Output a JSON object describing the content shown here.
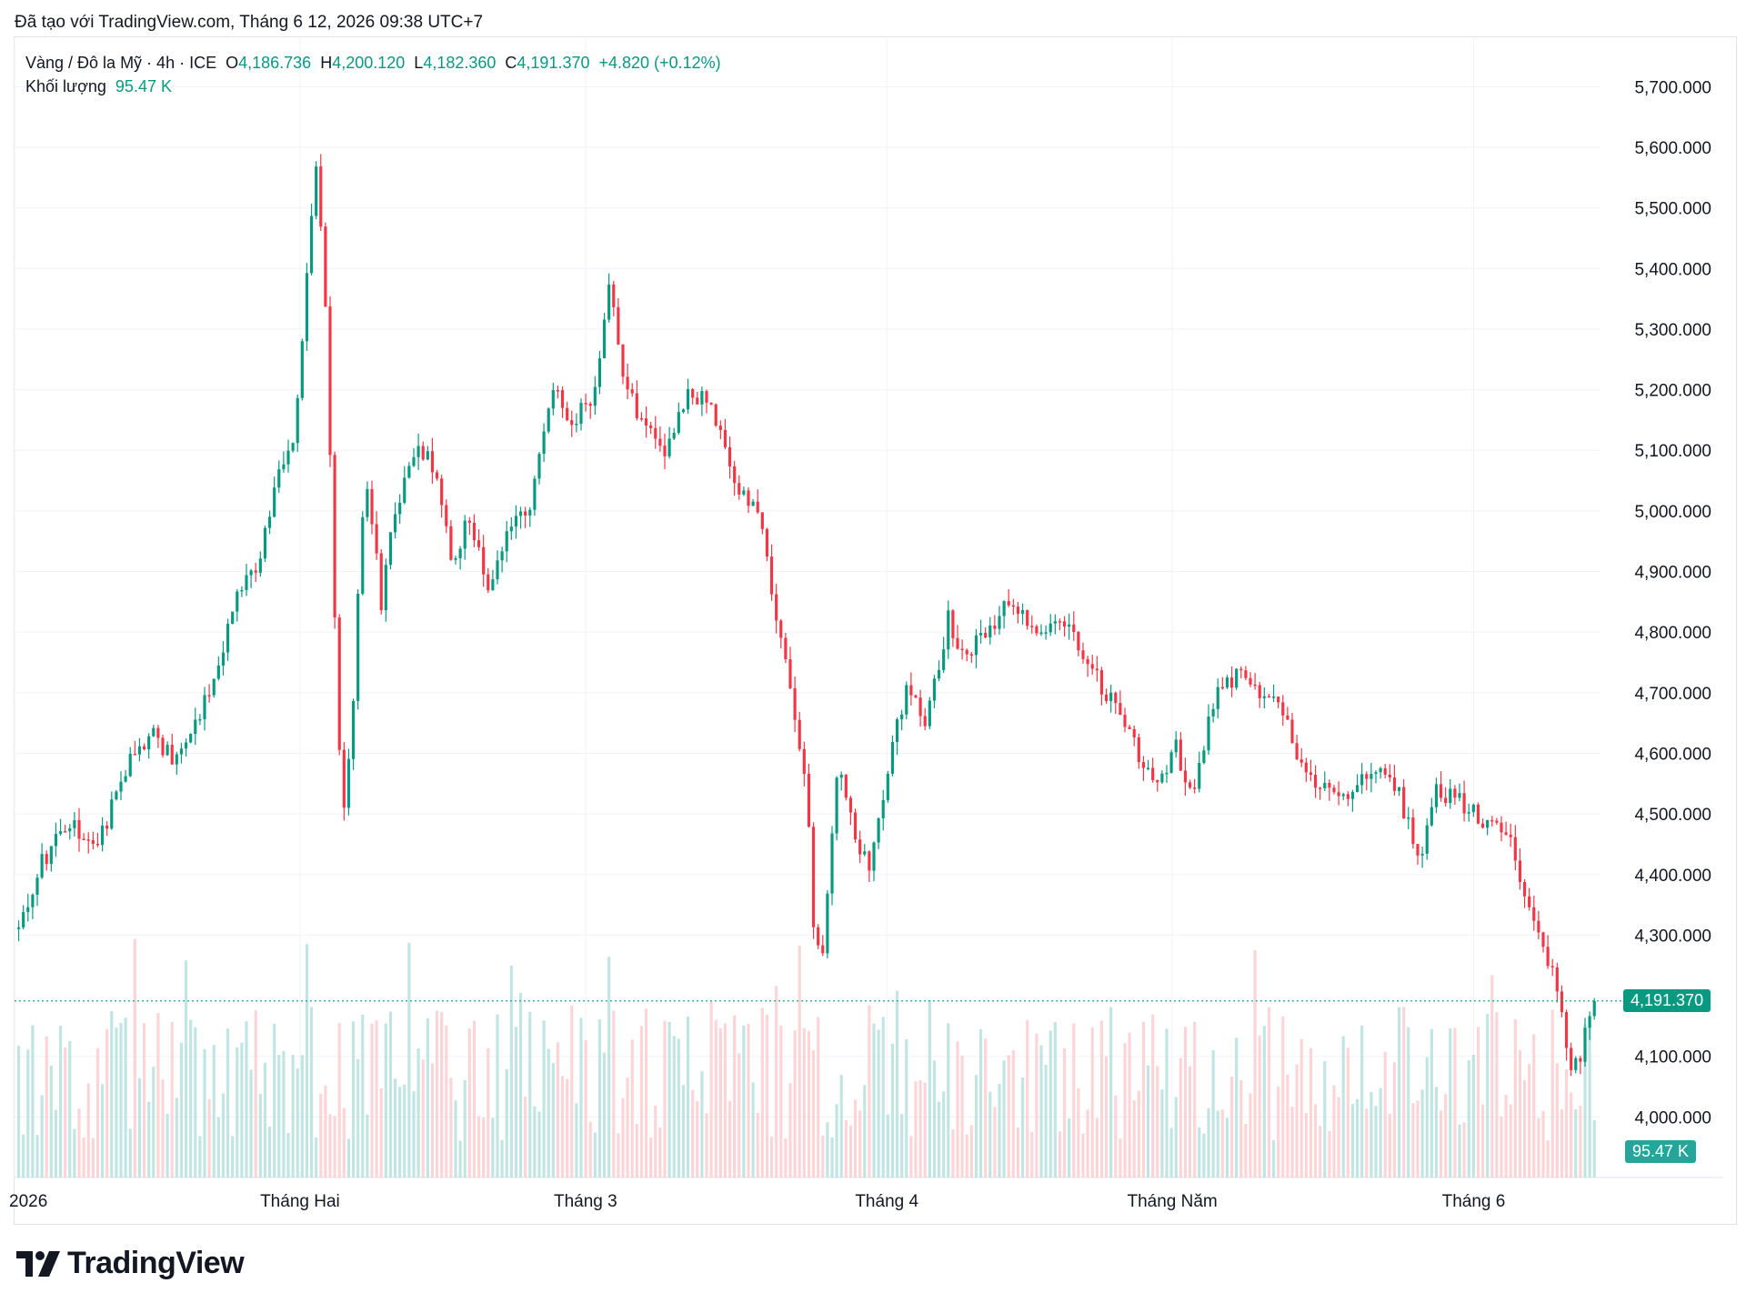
{
  "header": {
    "note": "Đã tạo với TradingView.com, Tháng 6 12, 2026 09:38 UTC+7"
  },
  "legend": {
    "symbol": "Vàng / Đô la Mỹ · 4h · ICE",
    "o_label": "O",
    "o_value": "4,186.736",
    "h_label": "H",
    "h_value": "4,200.120",
    "l_label": "L",
    "l_value": "4,182.360",
    "c_label": "C",
    "c_value": "4,191.370",
    "change": "+4.820 (+0.12%)",
    "volume_label": "Khối lượng",
    "volume_value": "95.47 K"
  },
  "price_tag": "4,191.370",
  "volume_tag": "95.47 K",
  "brand": {
    "name": "TradingView"
  },
  "colors": {
    "up": "#089981",
    "down": "#f23645",
    "up_vol": "#b2dfdb",
    "down_vol": "#fccbcd",
    "grid": "#f0f3fa"
  },
  "chart_data": {
    "type": "candlestick",
    "title": "Vàng / Đô la Mỹ · 4h · ICE",
    "interval": "4h",
    "y_ticks": [
      "5,700.000",
      "5,600.000",
      "5,500.000",
      "5,400.000",
      "5,300.000",
      "5,200.000",
      "5,100.000",
      "5,000.000",
      "4,900.000",
      "4,800.000",
      "4,700.000",
      "4,600.000",
      "4,500.000",
      "4,400.000",
      "4,300.000",
      "4,100.000",
      "4,000.000"
    ],
    "y_tick_values": [
      5700,
      5600,
      5500,
      5400,
      5300,
      5200,
      5100,
      5000,
      4900,
      4800,
      4700,
      4600,
      4500,
      4400,
      4300,
      4100,
      4000
    ],
    "ylim": [
      3900,
      5780
    ],
    "x_ticks": [
      "2026",
      "Tháng Hai",
      "Tháng 3",
      "Tháng 4",
      "Tháng Năm",
      "Tháng 6"
    ],
    "x_tick_positions": [
      0,
      0.18,
      0.36,
      0.55,
      0.73,
      0.92
    ],
    "last_price": 4191.37,
    "anchors": [
      [
        0,
        4310
      ],
      [
        0.015,
        4420
      ],
      [
        0.03,
        4490
      ],
      [
        0.05,
        4450
      ],
      [
        0.06,
        4520
      ],
      [
        0.07,
        4590
      ],
      [
        0.085,
        4630
      ],
      [
        0.1,
        4590
      ],
      [
        0.11,
        4640
      ],
      [
        0.118,
        4690
      ],
      [
        0.13,
        4780
      ],
      [
        0.14,
        4880
      ],
      [
        0.15,
        4900
      ],
      [
        0.165,
        5060
      ],
      [
        0.175,
        5100
      ],
      [
        0.18,
        5280
      ],
      [
        0.188,
        5580
      ],
      [
        0.194,
        5400
      ],
      [
        0.2,
        4880
      ],
      [
        0.205,
        4470
      ],
      [
        0.212,
        4680
      ],
      [
        0.22,
        5080
      ],
      [
        0.23,
        4850
      ],
      [
        0.24,
        5020
      ],
      [
        0.255,
        5100
      ],
      [
        0.265,
        5060
      ],
      [
        0.275,
        4920
      ],
      [
        0.285,
        4980
      ],
      [
        0.3,
        4870
      ],
      [
        0.31,
        4960
      ],
      [
        0.325,
        5020
      ],
      [
        0.34,
        5200
      ],
      [
        0.35,
        5150
      ],
      [
        0.365,
        5190
      ],
      [
        0.375,
        5390
      ],
      [
        0.385,
        5210
      ],
      [
        0.395,
        5150
      ],
      [
        0.41,
        5100
      ],
      [
        0.425,
        5200
      ],
      [
        0.44,
        5180
      ],
      [
        0.455,
        5030
      ],
      [
        0.47,
        5010
      ],
      [
        0.48,
        4820
      ],
      [
        0.49,
        4700
      ],
      [
        0.5,
        4530
      ],
      [
        0.505,
        4300
      ],
      [
        0.51,
        4270
      ],
      [
        0.52,
        4600
      ],
      [
        0.53,
        4480
      ],
      [
        0.54,
        4400
      ],
      [
        0.55,
        4560
      ],
      [
        0.565,
        4720
      ],
      [
        0.575,
        4650
      ],
      [
        0.59,
        4820
      ],
      [
        0.6,
        4760
      ],
      [
        0.615,
        4800
      ],
      [
        0.63,
        4860
      ],
      [
        0.645,
        4790
      ],
      [
        0.66,
        4830
      ],
      [
        0.675,
        4770
      ],
      [
        0.69,
        4700
      ],
      [
        0.705,
        4630
      ],
      [
        0.72,
        4550
      ],
      [
        0.735,
        4610
      ],
      [
        0.745,
        4520
      ],
      [
        0.76,
        4710
      ],
      [
        0.775,
        4730
      ],
      [
        0.79,
        4680
      ],
      [
        0.8,
        4700
      ],
      [
        0.81,
        4600
      ],
      [
        0.825,
        4540
      ],
      [
        0.84,
        4520
      ],
      [
        0.855,
        4560
      ],
      [
        0.87,
        4570
      ],
      [
        0.88,
        4500
      ],
      [
        0.89,
        4430
      ],
      [
        0.9,
        4540
      ],
      [
        0.915,
        4520
      ],
      [
        0.93,
        4490
      ],
      [
        0.945,
        4470
      ],
      [
        0.955,
        4370
      ],
      [
        0.965,
        4310
      ],
      [
        0.975,
        4230
      ],
      [
        0.985,
        4080
      ],
      [
        0.992,
        4110
      ],
      [
        1.0,
        4191.37
      ]
    ]
  }
}
